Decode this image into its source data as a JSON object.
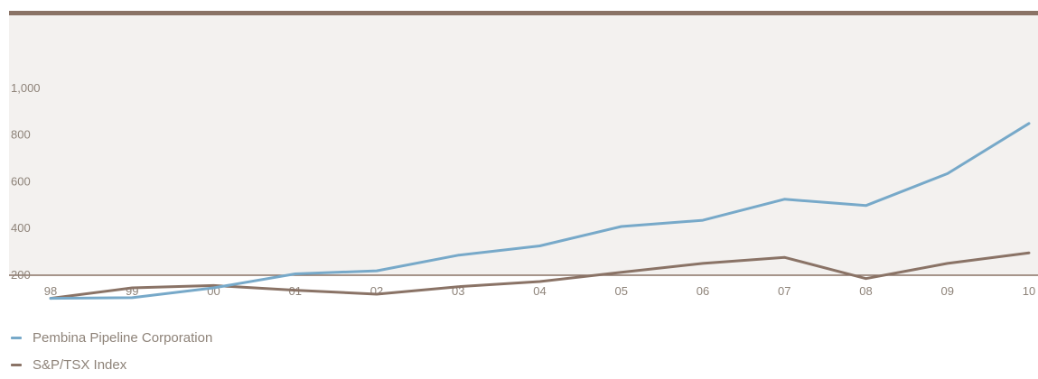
{
  "chart_data": {
    "type": "line",
    "x": [
      "98",
      "99",
      "00",
      "01",
      "02",
      "03",
      "04",
      "05",
      "06",
      "07",
      "08",
      "09",
      "10"
    ],
    "y_ticks": [
      "200",
      "400",
      "600",
      "800",
      "1,000"
    ],
    "ylim": [
      0,
      1000
    ],
    "grid": false,
    "legend_position": "bottom-left",
    "series": [
      {
        "name": "Pembina Pipeline Corporation",
        "color": "#77a9c9",
        "values": [
          100,
          103,
          145,
          205,
          218,
          285,
          325,
          408,
          435,
          525,
          498,
          635,
          850
        ]
      },
      {
        "name": "S&P/TSX Index",
        "color": "#8a7366",
        "values": [
          100,
          145,
          155,
          135,
          118,
          150,
          172,
          212,
          250,
          276,
          185,
          250,
          295
        ]
      }
    ],
    "colors": {
      "frame": "#8a7366",
      "plot_bg": "#f3f1ef",
      "axis_text": "#8e8379"
    }
  }
}
